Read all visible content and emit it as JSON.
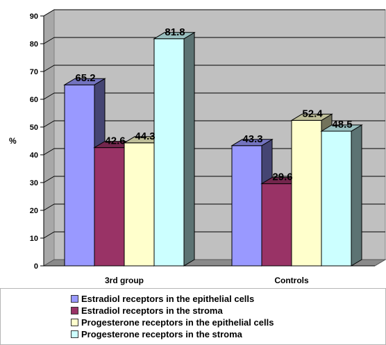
{
  "chart_data": {
    "type": "bar",
    "categories": [
      "3rd group",
      "Controls"
    ],
    "ylabel": "%",
    "xlabel": "",
    "ylim": [
      0,
      90
    ],
    "yticks": [
      0,
      10,
      20,
      30,
      40,
      50,
      60,
      70,
      80,
      90
    ],
    "grid": true,
    "legend_position": "bottom",
    "series": [
      {
        "name": "Estradiol receptors in the epithelial cells",
        "values": [
          65.2,
          43.3
        ],
        "labels": [
          "65.2",
          "43.3"
        ],
        "color": "#9999ff"
      },
      {
        "name": "Estradiol receptors in the stroma",
        "values": [
          42.6,
          29.6
        ],
        "labels": [
          "42.6",
          "29.6"
        ],
        "color": "#993366"
      },
      {
        "name": "Progesterone receptors in the epithelial cells",
        "values": [
          44.3,
          52.4
        ],
        "labels": [
          "44.3",
          "52.4"
        ],
        "color": "#ffffcc"
      },
      {
        "name": "Progesterone receptors in the stroma",
        "values": [
          81.8,
          48.5
        ],
        "labels": [
          "81.8",
          "48.5"
        ],
        "color": "#ccffff"
      }
    ]
  }
}
